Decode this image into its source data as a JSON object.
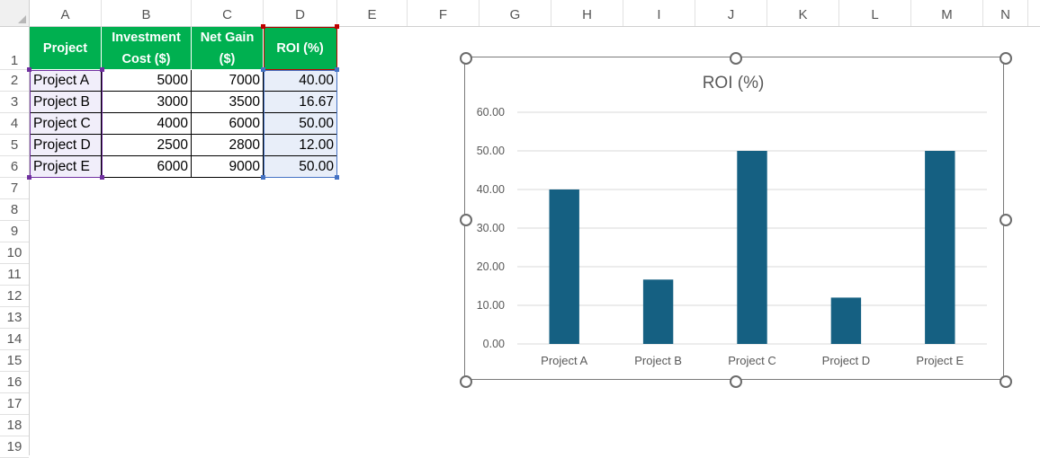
{
  "columns": [
    "A",
    "B",
    "C",
    "D",
    "E",
    "F",
    "G",
    "H",
    "I",
    "J",
    "K",
    "L",
    "M",
    "N"
  ],
  "rows": [
    "1",
    "2",
    "3",
    "4",
    "5",
    "6",
    "7",
    "8",
    "9",
    "10",
    "11",
    "12",
    "13",
    "14",
    "15",
    "16",
    "17",
    "18",
    "19"
  ],
  "table": {
    "headers": [
      "Project",
      "Investment Cost ($)",
      "Net Gain ($)",
      "ROI (%)"
    ],
    "rows": [
      [
        "Project A",
        "5000",
        "7000",
        "40.00"
      ],
      [
        "Project B",
        "3000",
        "3500",
        "16.67"
      ],
      [
        "Project C",
        "4000",
        "6000",
        "50.00"
      ],
      [
        "Project D",
        "2500",
        "2800",
        "12.00"
      ],
      [
        "Project E",
        "6000",
        "9000",
        "50.00"
      ]
    ]
  },
  "colors": {
    "header_fill": "#00b050",
    "bar": "#156082",
    "selection_purple": "#7030a0",
    "selection_blue": "#4472c4",
    "selection_red": "#c00000"
  },
  "chart_data": {
    "type": "bar",
    "title": "ROI (%)",
    "categories": [
      "Project A",
      "Project B",
      "Project C",
      "Project D",
      "Project E"
    ],
    "values": [
      40.0,
      16.67,
      50.0,
      12.0,
      50.0
    ],
    "yticks": [
      "0.00",
      "10.00",
      "20.00",
      "30.00",
      "40.00",
      "50.00",
      "60.00"
    ],
    "ylim": [
      0,
      60
    ],
    "grid": true,
    "xlabel": "",
    "ylabel": ""
  }
}
